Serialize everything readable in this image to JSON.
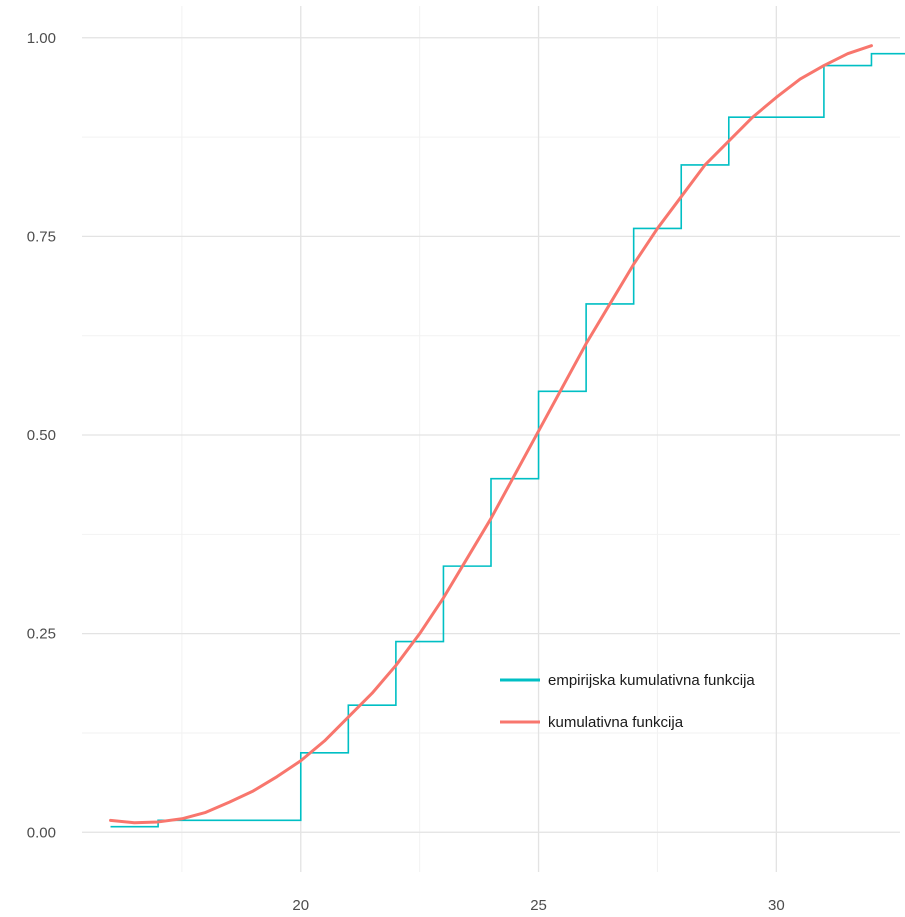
{
  "chart_data": {
    "type": "line",
    "title": "",
    "xlabel": "",
    "ylabel": "",
    "xlim": [
      15.4,
      32.6
    ],
    "ylim": [
      -0.05,
      1.04
    ],
    "grid": true,
    "legend_position": "bottom-right",
    "x_ticks": [
      {
        "value": 20,
        "label": "20"
      },
      {
        "value": 25,
        "label": "25"
      },
      {
        "value": 30,
        "label": "30"
      }
    ],
    "x_minor_ticks": [
      17.5,
      22.5,
      27.5
    ],
    "y_ticks": [
      {
        "value": 0.0,
        "label": "0.00"
      },
      {
        "value": 0.25,
        "label": "0.25"
      },
      {
        "value": 0.5,
        "label": "0.50"
      },
      {
        "value": 0.75,
        "label": "0.75"
      },
      {
        "value": 1.0,
        "label": "1.00"
      }
    ],
    "y_minor_ticks": [
      0.125,
      0.375,
      0.625,
      0.875
    ],
    "series": [
      {
        "name": "empirijska kumulativna funkcija",
        "color": "#00BFC4",
        "style": "step",
        "x": [
          16,
          17,
          20,
          21,
          22,
          23,
          24,
          25,
          26,
          27,
          28,
          29,
          31,
          32
        ],
        "y": [
          0.007,
          0.015,
          0.1,
          0.16,
          0.24,
          0.335,
          0.445,
          0.555,
          0.665,
          0.76,
          0.84,
          0.9,
          0.965,
          0.98
        ]
      },
      {
        "name": "kumulativna funkcija",
        "color": "#F8766D",
        "style": "line",
        "x": [
          16,
          16.5,
          17,
          17.5,
          18,
          18.5,
          19,
          19.5,
          20,
          20.5,
          21,
          21.5,
          22,
          22.5,
          23,
          23.5,
          24,
          24.5,
          25,
          25.5,
          26,
          26.5,
          27,
          27.5,
          28,
          28.5,
          29,
          29.5,
          30,
          30.5,
          31,
          31.5,
          32
        ],
        "y": [
          0.015,
          0.012,
          0.013,
          0.017,
          0.025,
          0.038,
          0.052,
          0.07,
          0.09,
          0.115,
          0.145,
          0.175,
          0.21,
          0.25,
          0.295,
          0.345,
          0.395,
          0.45,
          0.505,
          0.56,
          0.615,
          0.665,
          0.715,
          0.76,
          0.8,
          0.84,
          0.87,
          0.9,
          0.925,
          0.948,
          0.965,
          0.98,
          0.99
        ]
      }
    ]
  }
}
